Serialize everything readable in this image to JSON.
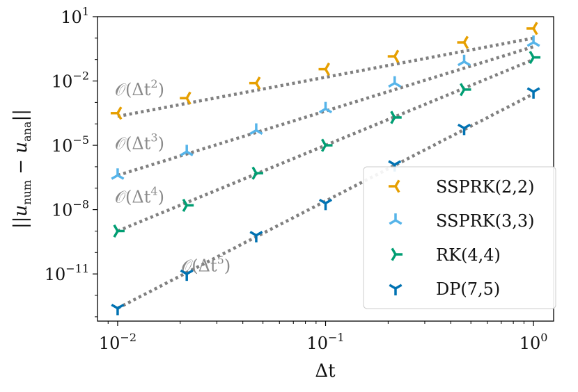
{
  "chart_data": {
    "type": "scatter",
    "scale": "log-log",
    "xlabel": "Δt",
    "ylabel": "||u_num − u_ana||",
    "xlim": [
      0.008,
      1.25
    ],
    "ylim_log10": [
      -13.2,
      1.0
    ],
    "x_ticks": [
      {
        "value": 0.01,
        "base": "10",
        "exp": "−2"
      },
      {
        "value": 0.1,
        "base": "10",
        "exp": "−1"
      },
      {
        "value": 1,
        "base": "10",
        "exp": "0"
      }
    ],
    "y_ticks": [
      {
        "log10": 1,
        "base": "10",
        "exp": "1"
      },
      {
        "log10": -2,
        "base": "10",
        "exp": "−2"
      },
      {
        "log10": -5,
        "base": "10",
        "exp": "−5"
      },
      {
        "log10": -8,
        "base": "10",
        "exp": "−8"
      },
      {
        "log10": -11,
        "base": "10",
        "exp": "−11"
      }
    ],
    "x": [
      0.01,
      0.0215,
      0.0464,
      0.1,
      0.215,
      0.464,
      1.0
    ],
    "series": [
      {
        "name": "SSPRK(2,2)",
        "color": "#E69F00",
        "marker": "right",
        "order": 2,
        "log10_values": [
          -3.5,
          -2.8,
          -2.1,
          -1.45,
          -0.85,
          -0.2,
          0.45
        ],
        "fit_log10": [
          -3.65,
          0.0
        ]
      },
      {
        "name": "SSPRK(3,3)",
        "color": "#56B4E9",
        "marker": "down",
        "order": 3,
        "log10_values": [
          -6.4,
          -5.3,
          -4.3,
          -3.3,
          -2.1,
          -1.1,
          -0.2
        ],
        "fit_log10": [
          -6.4,
          -0.4
        ]
      },
      {
        "name": "RK(4,4)",
        "color": "#009E73",
        "marker": "left",
        "order": 4,
        "log10_values": [
          -9.0,
          -7.8,
          -6.3,
          -5.0,
          -3.7,
          -2.4,
          -0.9
        ],
        "fit_log10": [
          -9.0,
          -1.0
        ]
      },
      {
        "name": "DP(7,5)",
        "color": "#0072B2",
        "marker": "up",
        "order": 5,
        "log10_values": [
          -12.6,
          -11.0,
          -9.2,
          -7.7,
          -5.9,
          -4.2,
          -2.5
        ],
        "fit_log10": [
          -12.6,
          -2.6
        ]
      }
    ],
    "fit_color": "#808080",
    "annotations": [
      {
        "text": "𝒪(Δt",
        "sup": "2",
        "close": ")"
      },
      {
        "text": "𝒪(Δt",
        "sup": "3",
        "close": ")"
      },
      {
        "text": "𝒪(Δt",
        "sup": "4",
        "close": ")"
      },
      {
        "text": "𝒪(Δt",
        "sup": "5",
        "close": ")"
      }
    ],
    "legend": {
      "placement": "lower-right",
      "entries": [
        "SSPRK(2,2)",
        "SSPRK(3,3)",
        "RK(4,4)",
        "DP(7,5)"
      ]
    }
  }
}
